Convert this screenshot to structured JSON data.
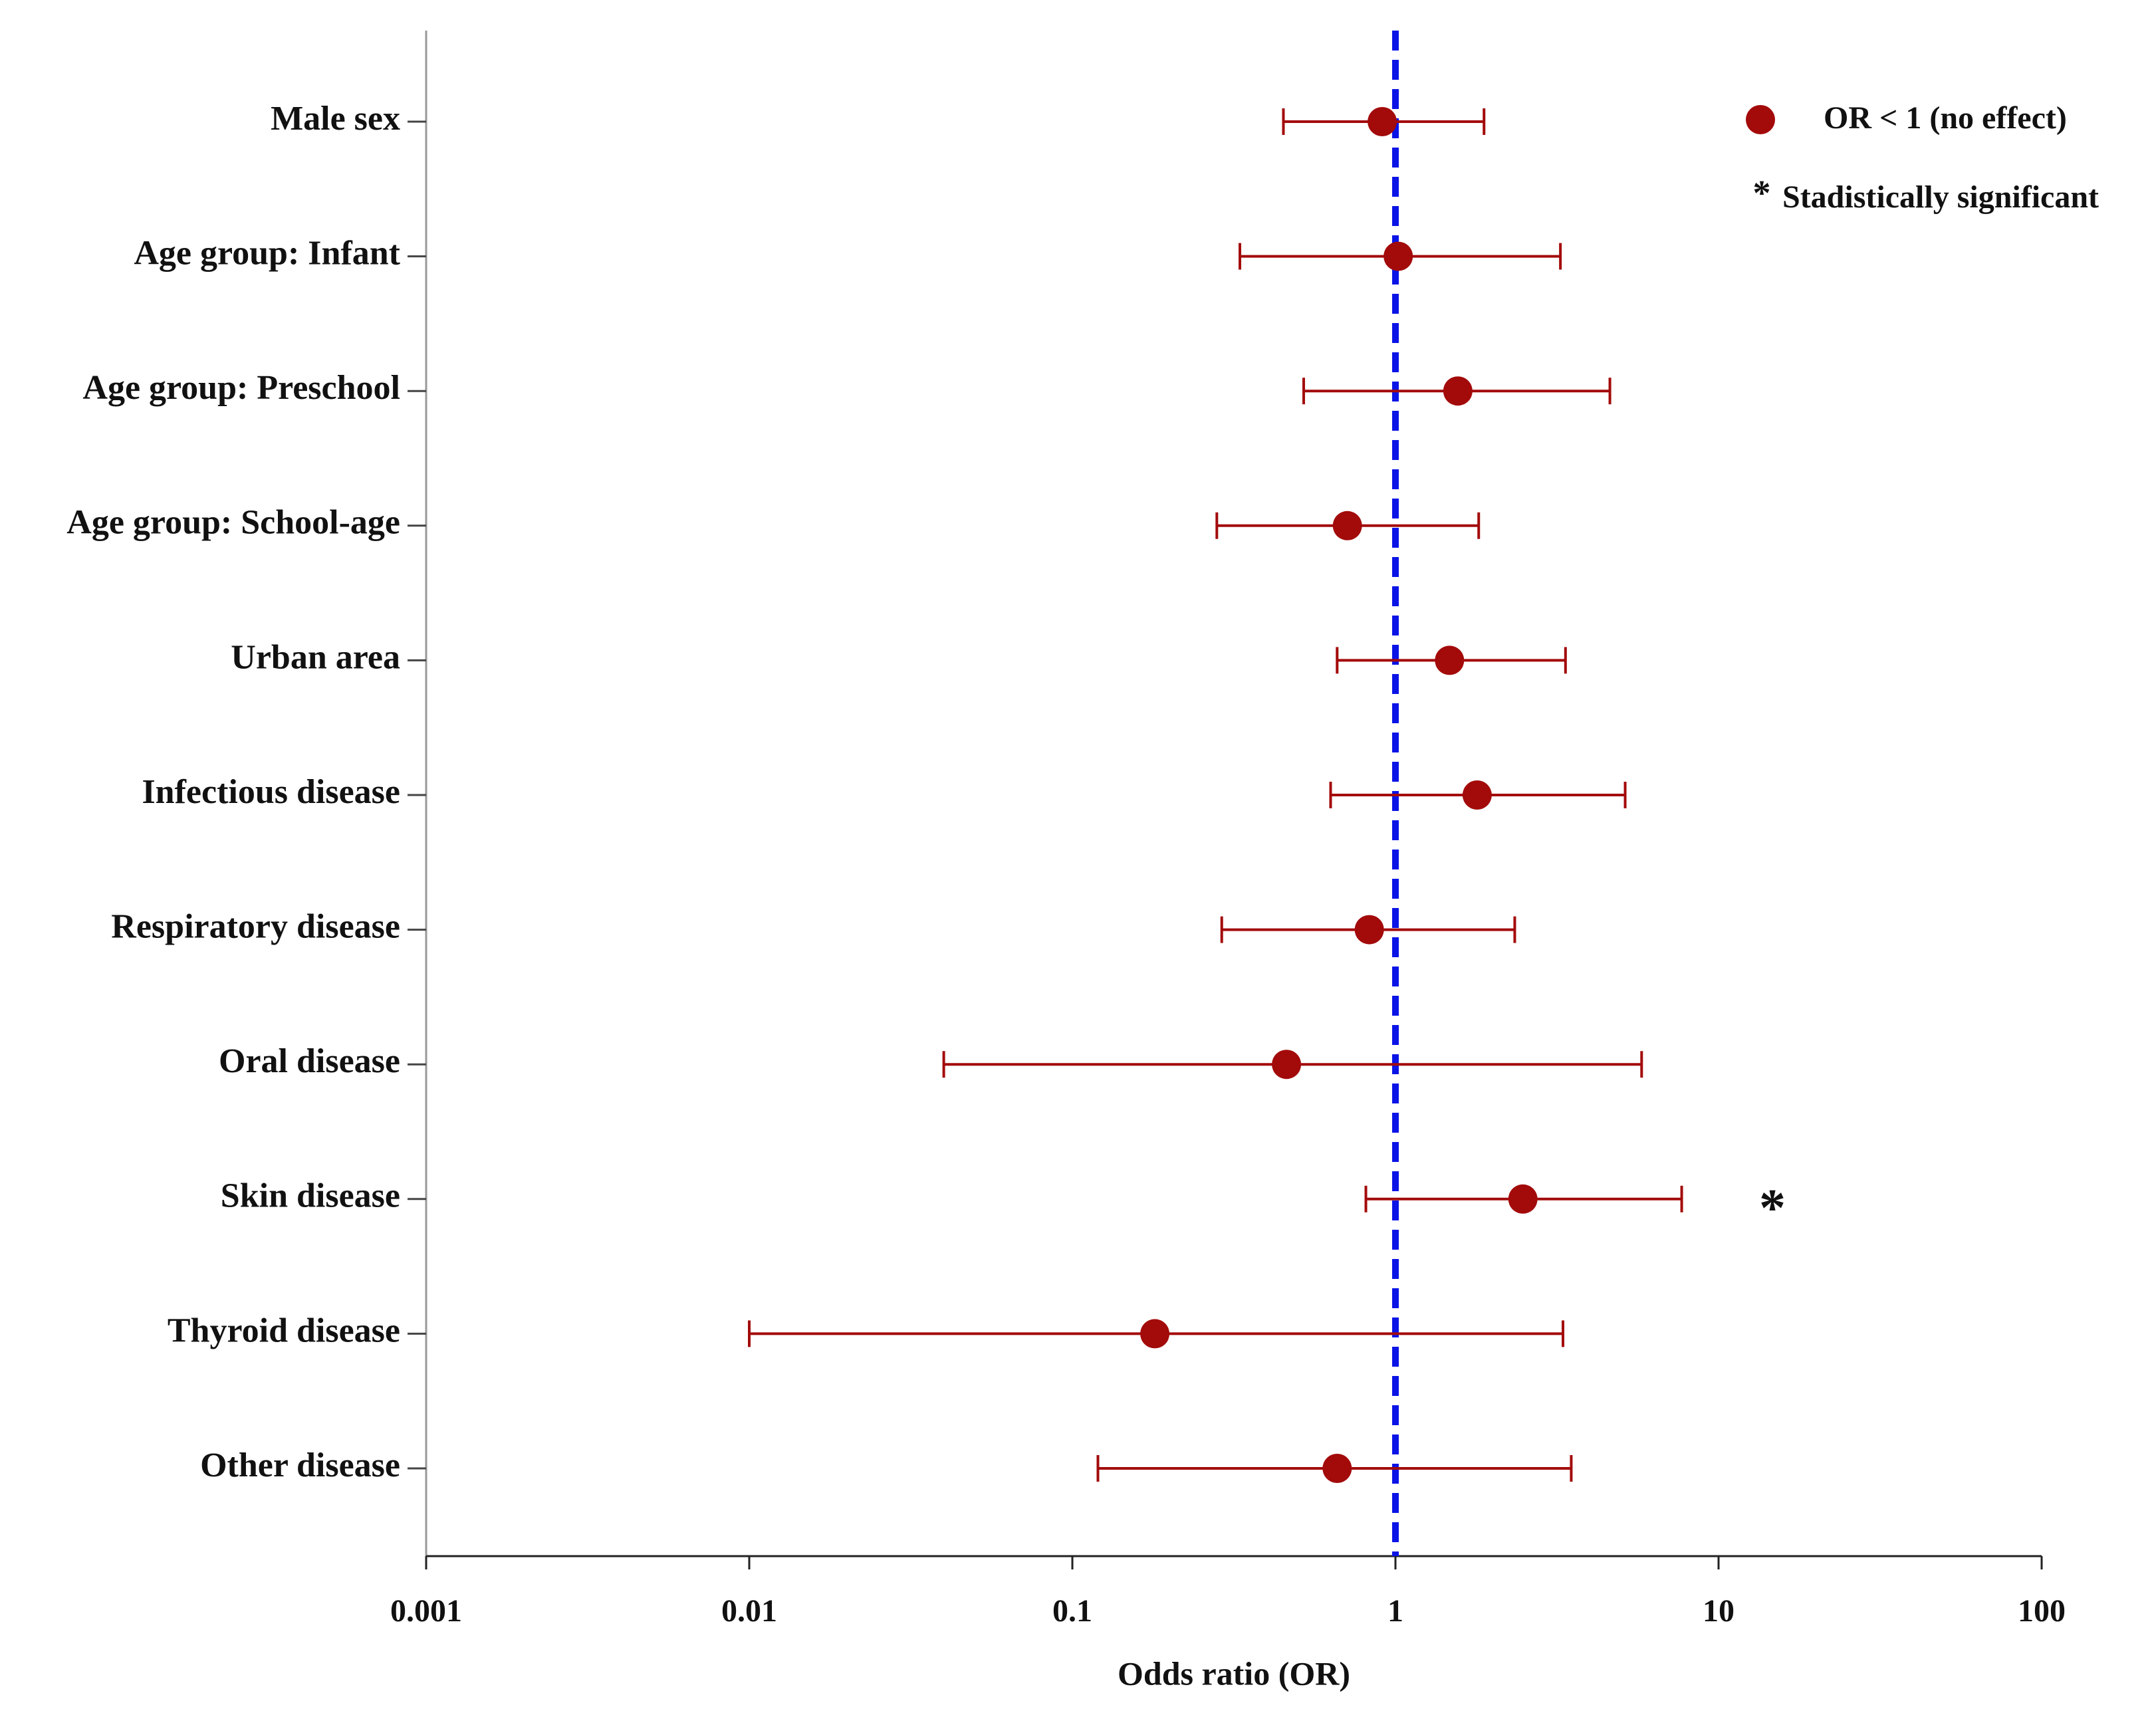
{
  "chart_data": {
    "type": "forest",
    "categories": [
      "Male sex",
      "Age group: Infant",
      "Age group: Preschool",
      "Age group: School-age",
      "Urban area",
      "Infectious disease",
      "Respiratory disease",
      "Oral disease",
      "Skin disease",
      "Thyroid disease",
      "Other disease"
    ],
    "series": [
      {
        "name": "OR < 1 (no effect)",
        "color": "#a30a0a",
        "values": [
          0.91,
          1.02,
          1.56,
          0.71,
          1.47,
          1.79,
          0.83,
          0.46,
          2.48,
          0.18,
          0.66
        ],
        "ci_lower": [
          0.45,
          0.33,
          0.52,
          0.28,
          0.66,
          0.63,
          0.29,
          0.04,
          0.81,
          0.01,
          0.12
        ],
        "ci_upper": [
          1.88,
          3.24,
          4.61,
          1.81,
          3.36,
          5.14,
          2.34,
          5.78,
          7.69,
          3.3,
          3.5
        ],
        "significant": [
          false,
          false,
          false,
          false,
          false,
          false,
          false,
          false,
          true,
          false,
          false
        ]
      }
    ],
    "significance_symbol": "*",
    "significance_label": "Stadistically significant",
    "reference_line": 1,
    "reference_color": "#0a14e6",
    "x_label": "Odds ratio (OR)",
    "x_log": true,
    "xlim": [
      0.001,
      100
    ],
    "xticks": [
      0.001,
      0.01,
      0.1,
      1,
      10,
      100
    ],
    "legend_position": "upper right"
  }
}
